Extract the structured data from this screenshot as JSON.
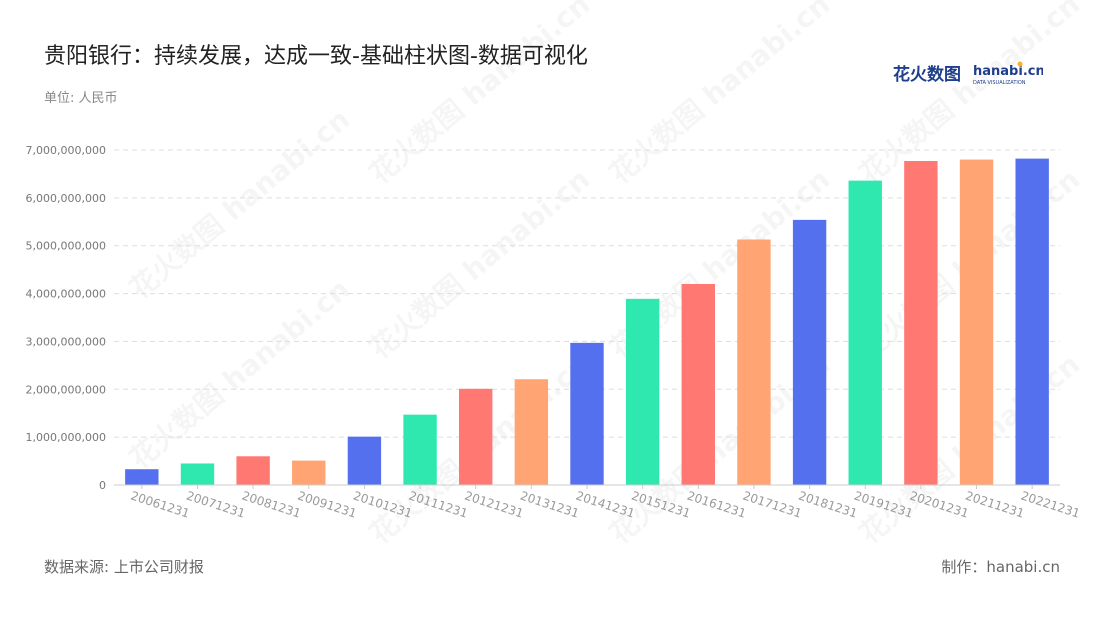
{
  "header": {
    "title": "贵阳银行：持续发展，达成一致-基础柱状图-数据可视化",
    "unit": "单位: 人民币"
  },
  "footer": {
    "source": "数据来源: 上市公司财报",
    "credit": "制作：hanabi.cn"
  },
  "logo": {
    "text_cn": "花火数图",
    "text_en": "hanabi.cn",
    "tagline": "DATA VISUALIZATION",
    "color": "#1f3e8c"
  },
  "watermark": {
    "text": "花火数图 hanabi.cn"
  },
  "colors": {
    "palette": [
      "#5470ee",
      "#2ee8b0",
      "#ff7872",
      "#ffa472"
    ],
    "grid": "#dddddd",
    "axis": "#cccccc"
  },
  "chart_data": {
    "type": "bar",
    "categories": [
      "20061231",
      "20071231",
      "20081231",
      "20091231",
      "20101231",
      "20111231",
      "20121231",
      "20131231",
      "20141231",
      "20151231",
      "20161231",
      "20171231",
      "20181231",
      "20191231",
      "20201231",
      "20211231",
      "20221231"
    ],
    "values": [
      330000000,
      450000000,
      600000000,
      510000000,
      1010000000,
      1470000000,
      2010000000,
      2210000000,
      2970000000,
      3890000000,
      4200000000,
      5130000000,
      5540000000,
      6360000000,
      6770000000,
      6800000000,
      6820000000
    ],
    "y_ticks": [
      "0",
      "1,000,000,000",
      "2,000,000,000",
      "3,000,000,000",
      "4,000,000,000",
      "5,000,000,000",
      "6,000,000,000",
      "7,000,000,000"
    ],
    "ylim": [
      0,
      7000000000
    ],
    "grid": true,
    "legend": "none",
    "color_cycle": "blue-green-red-orange"
  }
}
